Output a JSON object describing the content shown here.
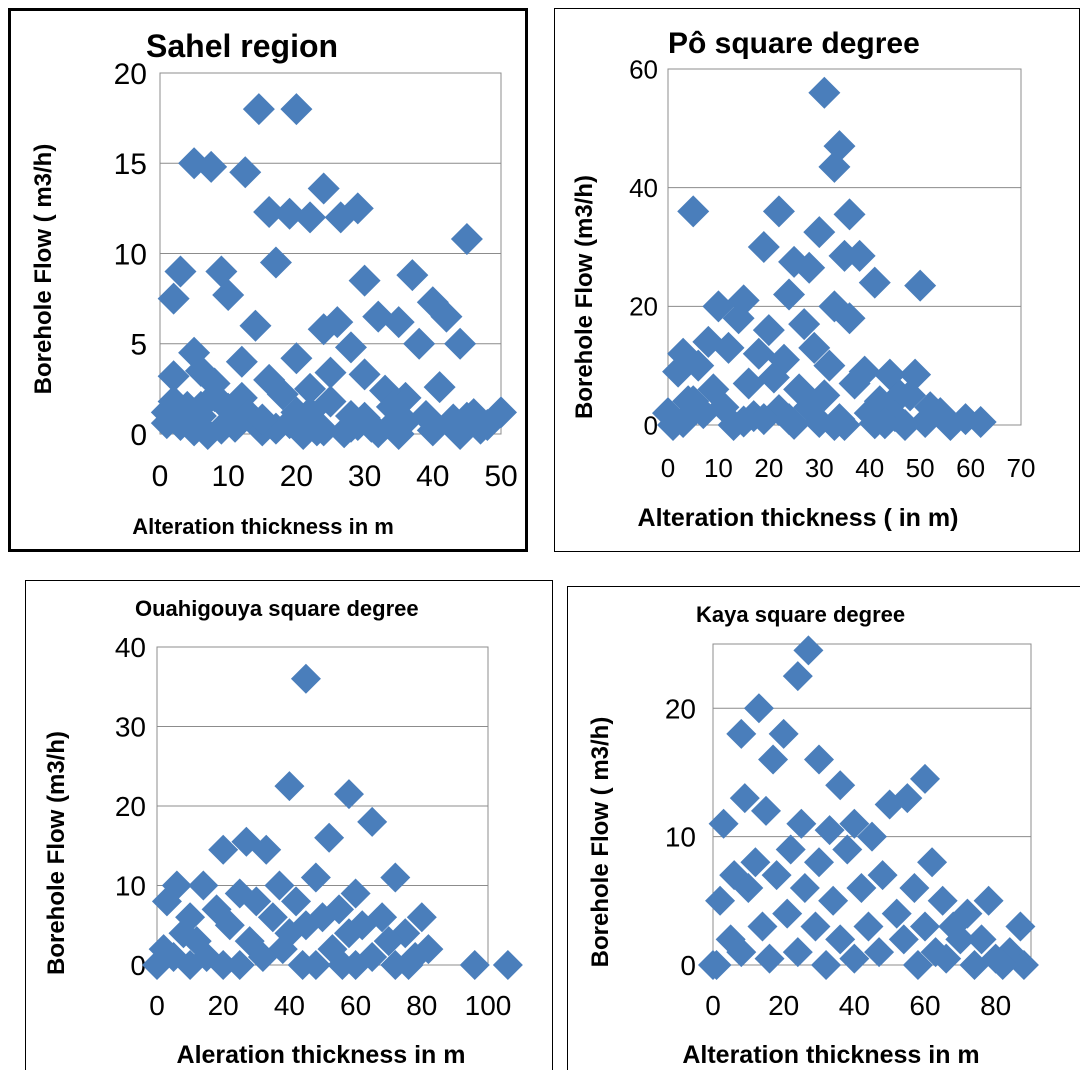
{
  "chart_data": [
    {
      "type": "scatter",
      "title": "Sahel region",
      "xlabel": "Alteration thickness in m",
      "ylabel": "Borehole Flow ( m3/h)",
      "xlim": [
        0,
        50
      ],
      "ylim": [
        0,
        20
      ],
      "xticks": [
        0,
        10,
        20,
        30,
        40,
        50
      ],
      "yticks": [
        0,
        5,
        10,
        15,
        20
      ],
      "grid": "horizontal",
      "marker_color": "#4A7EBB",
      "series": [
        {
          "x": [
            14.5,
            20,
            5,
            7.5,
            12.5,
            24,
            16,
            19,
            29,
            22,
            26.5,
            45,
            3,
            9,
            17,
            37,
            30,
            2,
            10,
            40,
            42,
            35,
            44,
            24,
            32,
            5,
            14,
            26,
            38,
            12,
            20,
            28,
            6,
            16,
            41,
            2,
            8,
            22,
            30,
            36,
            4,
            12,
            18,
            25,
            33,
            46,
            1,
            6,
            10,
            20,
            28,
            34,
            39,
            43,
            48,
            50,
            3,
            9,
            14,
            23,
            31,
            47,
            7,
            15,
            21,
            27,
            35,
            4,
            11,
            19,
            24,
            29,
            32,
            2,
            5,
            8,
            13,
            17,
            25,
            30,
            36,
            44,
            1,
            6,
            15,
            22,
            28,
            34,
            40,
            45
          ],
          "y": [
            18,
            18,
            15,
            14.8,
            14.5,
            13.6,
            12.3,
            12.2,
            12.5,
            12,
            12,
            10.8,
            9,
            9,
            9.5,
            8.8,
            8.5,
            7.5,
            7.7,
            7.3,
            6.5,
            6.2,
            5,
            5.8,
            6.5,
            4.5,
            6,
            6.2,
            5,
            4,
            4.2,
            4.8,
            3.5,
            3,
            2.6,
            3.2,
            2.8,
            2.5,
            3.3,
            2,
            1.5,
            2,
            2.2,
            1.8,
            2.4,
            1.1,
            1.2,
            1,
            1.4,
            1.2,
            1,
            1.5,
            1,
            0.8,
            0.5,
            1.2,
            0.5,
            0.3,
            0.6,
            0.2,
            0.4,
            0.3,
            0,
            0.2,
            0,
            0.1,
            0,
            0.8,
            0.4,
            0.6,
            0.2,
            0.5,
            0.1,
            1.8,
            0.2,
            2.1,
            1.1,
            0.3,
            3.4,
            0.9,
            0.7,
            0,
            0.6,
            1.5,
            0.8,
            1.2,
            0.4,
            0.5,
            0.2,
            0.9
          ]
        }
      ]
    },
    {
      "type": "scatter",
      "title": "Pô square degree",
      "xlabel": "Alteration thickness ( in m)",
      "ylabel": "Borehole Flow (m3/h)",
      "xlim": [
        0,
        70
      ],
      "ylim": [
        0,
        60
      ],
      "xticks": [
        0,
        10,
        20,
        30,
        40,
        50,
        60,
        70
      ],
      "yticks": [
        0,
        20,
        40,
        60
      ],
      "grid": "horizontal",
      "marker_color": "#4A7EBB",
      "series": [
        {
          "x": [
            31,
            34,
            33,
            5,
            22,
            30,
            36,
            35,
            19,
            25,
            28,
            38,
            41,
            50,
            10,
            15,
            24,
            33,
            3,
            8,
            14,
            20,
            27,
            36,
            44,
            49,
            2,
            6,
            12,
            18,
            23,
            29,
            32,
            39,
            46,
            52,
            0,
            4,
            9,
            16,
            21,
            26,
            31,
            37,
            42,
            48,
            54,
            59,
            62,
            1,
            7,
            11,
            17,
            22,
            28,
            34,
            40,
            45,
            51,
            3,
            13,
            19,
            25,
            30,
            35,
            43,
            56,
            5,
            15,
            24,
            33,
            41,
            47
          ],
          "y": [
            56,
            47,
            43.5,
            36,
            36,
            32.5,
            35.5,
            28.5,
            30,
            27.5,
            26.5,
            28.5,
            24,
            23.5,
            20,
            21,
            22,
            20,
            12,
            14,
            18,
            16,
            17,
            18,
            8.5,
            8.5,
            9,
            10,
            13,
            12,
            11,
            13,
            10,
            9,
            5,
            3,
            2,
            4,
            6,
            7,
            8,
            6,
            5,
            7,
            4,
            5,
            2,
            1,
            0.5,
            0,
            2,
            3,
            1.5,
            2.5,
            3,
            1,
            2,
            1.5,
            0.5,
            0.5,
            0,
            1,
            0.2,
            0.5,
            0,
            0.3,
            0,
            4,
            0.6,
            1,
            0,
            0.3,
            0
          ]
        }
      ]
    },
    {
      "type": "scatter",
      "title": "Ouahigouya square degree",
      "xlabel": "Aleration thickness in m",
      "ylabel": "Borehole Flow (m3/h)",
      "xlim": [
        0,
        100
      ],
      "ylim": [
        0,
        40
      ],
      "xticks": [
        0,
        20,
        40,
        60,
        80,
        100
      ],
      "yticks": [
        0,
        10,
        20,
        30,
        40
      ],
      "grid": "horizontal",
      "marker_color": "#4A7EBB",
      "series": [
        {
          "x": [
            45,
            40,
            58,
            65,
            52,
            27,
            20,
            33,
            72,
            6,
            14,
            3,
            37,
            48,
            60,
            80,
            25,
            42,
            55,
            68,
            10,
            18,
            30,
            50,
            62,
            75,
            0,
            8,
            22,
            35,
            45,
            58,
            70,
            82,
            2,
            12,
            28,
            40,
            53,
            65,
            78,
            96,
            106,
            5,
            15,
            25,
            38,
            48,
            60,
            72,
            76,
            10,
            20,
            32,
            44,
            56
          ],
          "y": [
            36,
            22.5,
            21.5,
            18,
            16,
            15.5,
            14.5,
            14.5,
            11,
            10,
            10,
            8,
            10,
            11,
            9,
            6,
            9,
            8,
            7,
            6,
            6,
            7,
            8,
            6,
            5,
            4,
            0,
            4,
            5,
            6,
            5,
            4,
            3,
            2,
            2,
            3,
            3,
            4,
            2,
            1,
            1,
            0,
            0,
            1,
            1,
            0,
            2,
            0,
            0,
            0,
            0,
            0,
            0,
            1,
            0,
            0
          ]
        }
      ]
    },
    {
      "type": "scatter",
      "title": "Kaya square degree",
      "xlabel": "Alteration thickness in m",
      "ylabel": "Borehole Flow ( m3/h)",
      "xlim": [
        0,
        90
      ],
      "ylim": [
        0,
        25
      ],
      "xticks": [
        0,
        20,
        40,
        60,
        80
      ],
      "yticks": [
        0,
        10,
        20
      ],
      "grid": "horizontal",
      "marker_color": "#4A7EBB",
      "series": [
        {
          "x": [
            27,
            24,
            13,
            8,
            20,
            17,
            30,
            36,
            60,
            55,
            62,
            50,
            9,
            3,
            15,
            25,
            40,
            45,
            33,
            78,
            87,
            6,
            12,
            22,
            30,
            38,
            48,
            57,
            65,
            72,
            2,
            10,
            18,
            26,
            34,
            42,
            52,
            60,
            68,
            76,
            84,
            0,
            5,
            14,
            21,
            29,
            36,
            44,
            54,
            63,
            70,
            80,
            88,
            1,
            8,
            16,
            24,
            32,
            40,
            47,
            58,
            66,
            74,
            82
          ],
          "y": [
            24.5,
            22.5,
            20,
            18,
            18,
            16,
            16,
            14,
            14.5,
            13,
            8,
            12.5,
            13,
            11,
            12,
            11,
            11,
            10,
            10.5,
            5,
            3,
            7,
            8,
            9,
            8,
            9,
            7,
            6,
            5,
            4,
            5,
            6,
            7,
            6,
            5,
            6,
            4,
            3,
            3,
            2,
            1,
            0,
            2,
            3,
            4,
            3,
            2,
            3,
            2,
            1,
            2,
            0.5,
            0,
            0,
            1,
            0.5,
            1,
            0,
            0.5,
            1,
            0,
            0.5,
            0,
            0
          ]
        }
      ]
    }
  ]
}
